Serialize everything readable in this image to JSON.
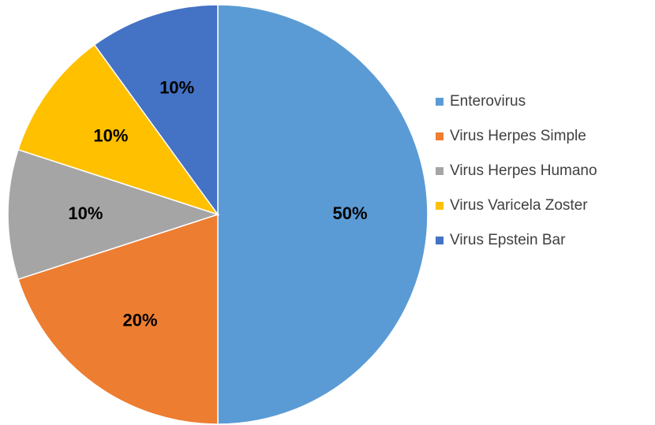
{
  "chart_data": {
    "type": "pie",
    "categories": [
      "Enterovirus",
      "Virus Herpes Simple",
      "Virus Herpes Humano",
      "Virus Varicela Zoster",
      "Virus Epstein Bar"
    ],
    "values": [
      50,
      20,
      10,
      10,
      10
    ],
    "value_labels": [
      "50%",
      "20%",
      "10%",
      "10%",
      "10%"
    ],
    "colors": [
      "#5B9BD5",
      "#ED7D31",
      "#A5A5A5",
      "#FFC000",
      "#4472C4"
    ],
    "legend": "right"
  }
}
